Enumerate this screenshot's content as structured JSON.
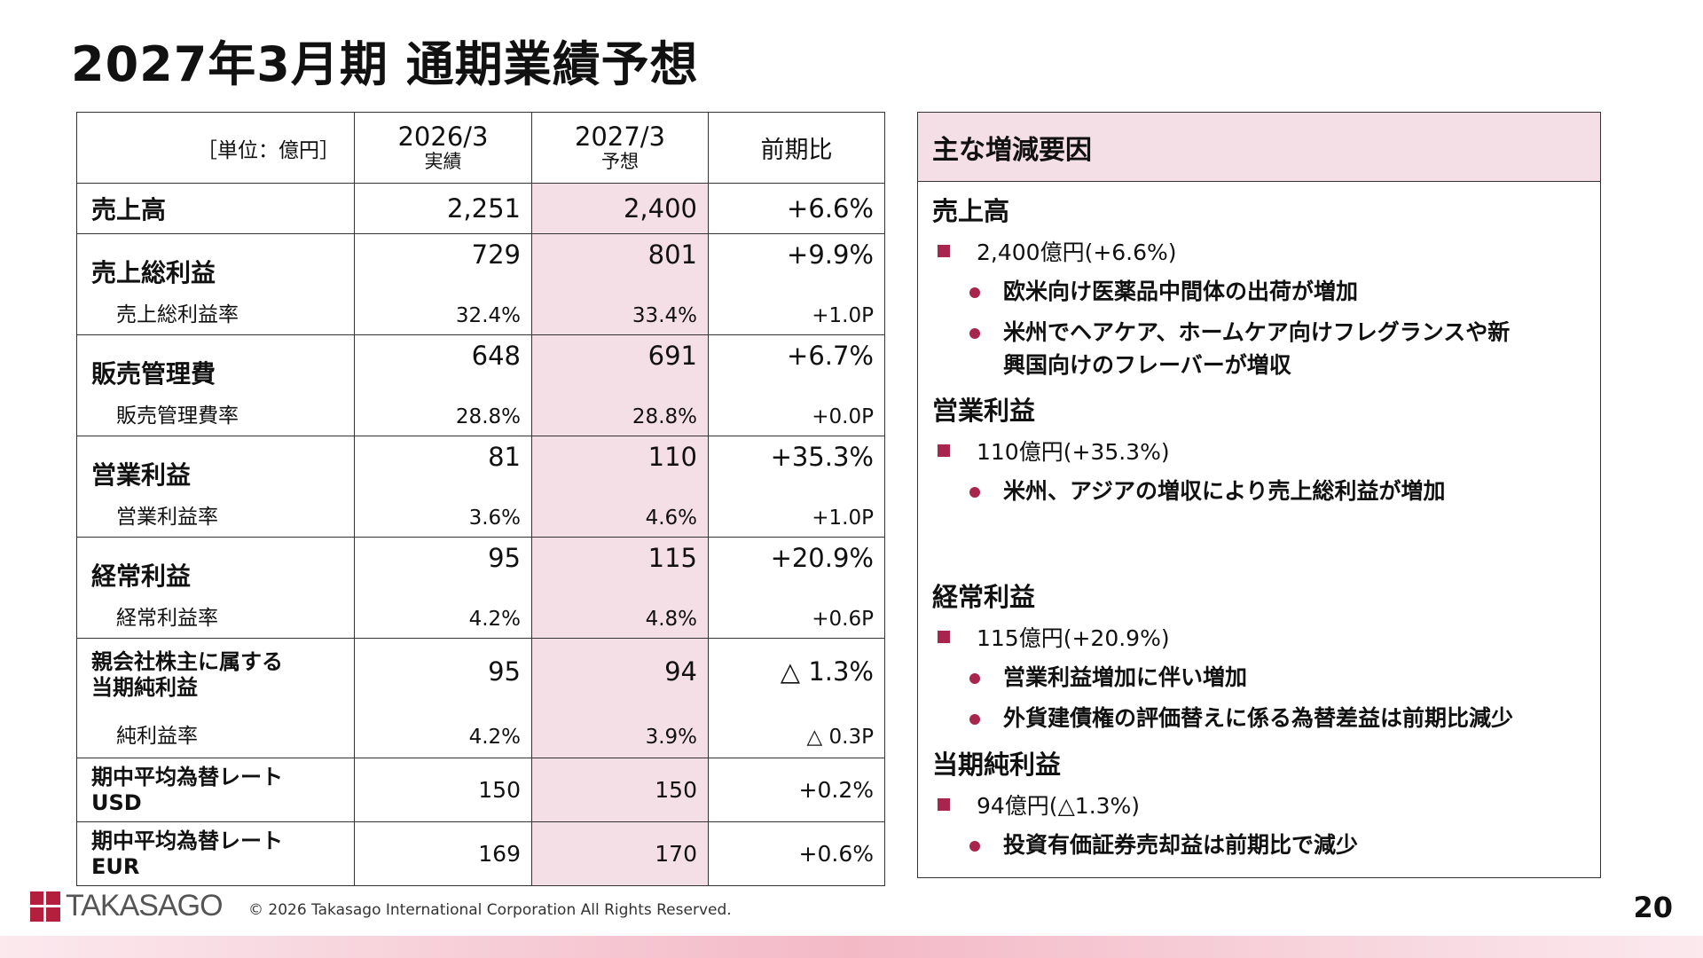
{
  "title": "2027年3月期 通期業績予想",
  "table": {
    "unit": "［単位：億円］",
    "col1": {
      "main": "2026/3",
      "sub": "実績"
    },
    "col2": {
      "main": "2027/3",
      "sub": "予想"
    },
    "col3": "前期比",
    "sales": {
      "label": "売上高",
      "v1": "2,251",
      "v2": "2,400",
      "v3": "+6.6%"
    },
    "gross": {
      "label": "売上総利益",
      "v1": "729",
      "v2": "801",
      "v3": "+9.9%",
      "sub_label": "売上総利益率",
      "s1": "32.4%",
      "s2": "33.4%",
      "s3": "+1.0P"
    },
    "sga": {
      "label": "販売管理費",
      "v1": "648",
      "v2": "691",
      "v3": "+6.7%",
      "sub_label": "販売管理費率",
      "s1": "28.8%",
      "s2": "28.8%",
      "s3": "+0.0P"
    },
    "op": {
      "label": "営業利益",
      "v1": "81",
      "v2": "110",
      "v3": "+35.3%",
      "sub_label": "営業利益率",
      "s1": "3.6%",
      "s2": "4.6%",
      "s3": "+1.0P"
    },
    "ordinary": {
      "label": "経常利益",
      "v1": "95",
      "v2": "115",
      "v3": "+20.9%",
      "sub_label": "経常利益率",
      "s1": "4.2%",
      "s2": "4.8%",
      "s3": "+0.6P"
    },
    "net": {
      "label1": "親会社株主に属する",
      "label2": "当期純利益",
      "v1": "95",
      "v2": "94",
      "v3": "△ 1.3%",
      "sub_label": "純利益率",
      "s1": "4.2%",
      "s2": "3.9%",
      "s3": "△ 0.3P"
    },
    "usd": {
      "label1": "期中平均為替レート",
      "label2": "USD",
      "v1": "150",
      "v2": "150",
      "v3": "+0.2%"
    },
    "eur": {
      "label1": "期中平均為替レート",
      "label2": "EUR",
      "v1": "169",
      "v2": "170",
      "v3": "+0.6%"
    }
  },
  "panel": {
    "heading": "主な増減要因",
    "sales": {
      "title": "売上高",
      "headline": "2,400億円(+6.6%)",
      "bullet1": "欧米向け医薬品中間体の出荷が増加",
      "bullet2_line1": "米州でヘアケア、ホームケア向けフレグランスや新",
      "bullet2_line2": "興国向けのフレーバーが増収"
    },
    "op": {
      "title": "営業利益",
      "headline": "110億円(+35.3%)",
      "bullet1": "米州、アジアの増収により売上総利益が増加"
    },
    "ordinary": {
      "title": "経常利益",
      "headline": "115億円(+20.9%)",
      "bullet1": "営業利益増加に伴い増加",
      "bullet2": "外貨建債権の評価替えに係る為替差益は前期比減少"
    },
    "net": {
      "title": "当期純利益",
      "headline": "94億円(△1.3%)",
      "bullet1": "投資有価証券売却益は前期比で減少"
    }
  },
  "footer": {
    "logo_text": "TAKASAGO",
    "copyright": "© 2026 Takasago International Corporation All Rights Reserved.",
    "page": "20"
  },
  "colors": {
    "accent": "#a8254d",
    "highlight": "#f5dfe6",
    "logo": "#b51f3e"
  }
}
